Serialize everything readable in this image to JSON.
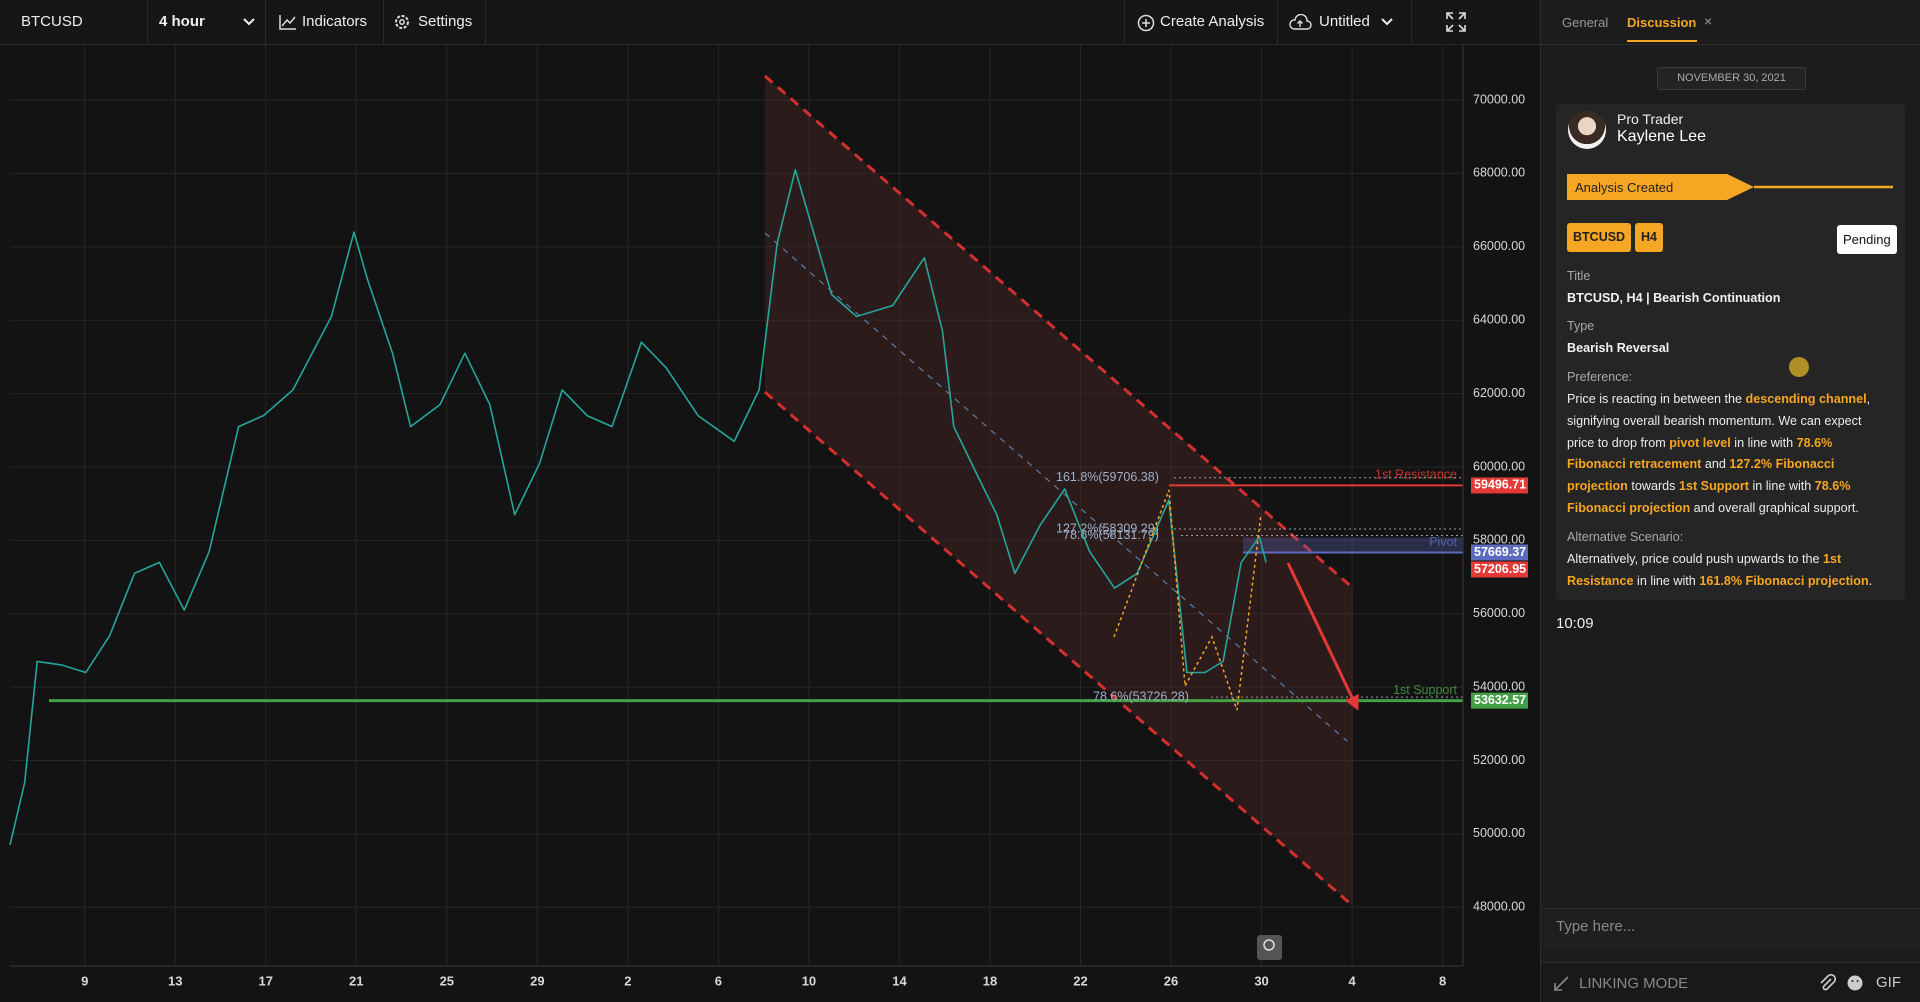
{
  "toolbar": {
    "symbol": "BTCUSD",
    "interval": "4 hour",
    "indicators": "Indicators",
    "settings": "Settings",
    "create_analysis": "Create Analysis",
    "layout_name": "Untitled"
  },
  "chart_data": {
    "type": "line",
    "color": "#26a69a",
    "x": [
      5.7,
      6.35,
      6.9,
      8.0,
      9.05,
      10.1,
      11.2,
      12.3,
      13.4,
      14.5,
      15.8,
      16.9,
      18.2,
      19.9,
      20.9,
      21.5,
      22.6,
      23.4,
      24.7,
      25.8,
      26.9,
      28.0,
      29.1,
      30.1,
      31.2,
      32.3,
      33.6,
      34.7,
      36.1,
      37.7,
      38.8,
      39.6,
      40.4,
      41.2,
      42.0,
      43.1,
      44.7,
      46.1,
      46.9,
      47.4,
      48.5,
      49.3,
      50.1,
      51.2,
      52.3,
      53.4,
      54.5,
      55.5,
      56.9,
      57.7,
      58.5,
      59.3,
      60.1,
      60.9,
      61.2
    ],
    "values": [
      49700,
      51400,
      54700,
      54600,
      54400,
      55400,
      57100,
      57400,
      56100,
      57700,
      61100,
      61400,
      62100,
      64100,
      66400,
      65100,
      63100,
      61100,
      61700,
      63100,
      61700,
      58700,
      60100,
      62100,
      61400,
      61100,
      63400,
      62700,
      61400,
      60700,
      62100,
      66100,
      68100,
      66400,
      64700,
      64100,
      64400,
      65700,
      63700,
      61100,
      59700,
      58700,
      57100,
      58400,
      59400,
      57700,
      56700,
      57100,
      59100,
      54400,
      54400,
      54700,
      57400,
      58100,
      57400
    ],
    "xlim": [
      5.7,
      69.9
    ],
    "xticks": [
      9,
      13,
      17,
      21,
      25,
      29,
      {
        "value": 33,
        "label": "2"
      },
      {
        "value": 37,
        "label": "6"
      },
      {
        "value": 41,
        "label": "10"
      },
      {
        "value": 45,
        "label": "14"
      },
      {
        "value": 49,
        "label": "18"
      },
      {
        "value": 53,
        "label": "22"
      },
      {
        "value": 57,
        "label": "26"
      },
      {
        "value": 61,
        "label": "30"
      },
      {
        "value": 65,
        "label": "4"
      },
      {
        "value": 69,
        "label": "8"
      }
    ],
    "ylim": [
      46400,
      71200
    ],
    "yticks": [
      {
        "value": 48000,
        "label": "48000.00"
      },
      {
        "value": 50000,
        "label": "50000.00"
      },
      {
        "value": 52000,
        "label": "52000.00"
      },
      {
        "value": 54000,
        "label": "54000.00"
      },
      {
        "value": 56000,
        "label": "56000.00"
      },
      {
        "value": 58000,
        "label": "58000.00"
      },
      {
        "value": 60000,
        "label": "60000.00"
      },
      {
        "value": 62000,
        "label": "62000.00"
      },
      {
        "value": 64000,
        "label": "64000.00"
      },
      {
        "value": 66000,
        "label": "66000.00"
      },
      {
        "value": 68000,
        "label": "68000.00"
      },
      {
        "value": 70000,
        "label": "70000.00"
      }
    ],
    "grid": true,
    "levels": [
      {
        "name": "1st Resistance",
        "value": 59496.71,
        "color": "#e53935"
      },
      {
        "name": "Pivot",
        "value": 57669.37,
        "color": "#5c6bc0"
      },
      {
        "value": 57206.95,
        "color": "#e53935"
      },
      {
        "name": "1st Support",
        "value": 53632.57,
        "color": "#43a047"
      }
    ],
    "fib_levels": [
      {
        "label": "161.8%(59706.38)",
        "value": 59706.38
      },
      {
        "label": "127.2%(58309.29)",
        "value": 58309.29
      },
      {
        "label": "78.6%(58131.79)",
        "value": 58131.79
      },
      {
        "label": "78.6%(53726.28)",
        "value": 53726.28
      }
    ]
  },
  "panel": {
    "tabs": [
      "General",
      "Discussion"
    ],
    "date": "NOVEMBER 30, 2021",
    "author": {
      "role": "Pro Trader",
      "name": "Kaylene Lee"
    },
    "status_banner": "Analysis Created",
    "tags": [
      "BTCUSD",
      "H4"
    ],
    "state": "Pending",
    "title_label": "Title",
    "title": "BTCUSD, H4 | Bearish Continuation",
    "type_label": "Type",
    "type": "Bearish Reversal",
    "preference_label": "Preference:",
    "preference": [
      {
        "text": "Price is reacting in between the "
      },
      {
        "text": "descending channel",
        "highlight": true
      },
      {
        "text": ", signifying overall bearish momentum. We can expect price to drop from "
      },
      {
        "text": "pivot level",
        "highlight": true
      },
      {
        "text": " in line with "
      },
      {
        "text": "78.6% Fibonacci retracement",
        "highlight": true
      },
      {
        "text": " and "
      },
      {
        "text": "127.2% Fibonacci projection",
        "highlight": true
      },
      {
        "text": " towards "
      },
      {
        "text": "1st Support",
        "highlight": true
      },
      {
        "text": " in line with "
      },
      {
        "text": "78.6% Fibonacci projection",
        "highlight": true
      },
      {
        "text": " and overall graphical support."
      }
    ],
    "alternative_label": "Alternative Scenario:",
    "alternative": [
      {
        "text": "Alternatively, price could push upwards to the "
      },
      {
        "text": "1st Resistance",
        "highlight": true
      },
      {
        "text": " in line with "
      },
      {
        "text": "161.8% Fibonacci projection",
        "highlight": true
      },
      {
        "text": "."
      }
    ],
    "time": "10:09",
    "input_placeholder": "Type here...",
    "linking_mode": "LINKING MODE",
    "gif": "GIF"
  }
}
